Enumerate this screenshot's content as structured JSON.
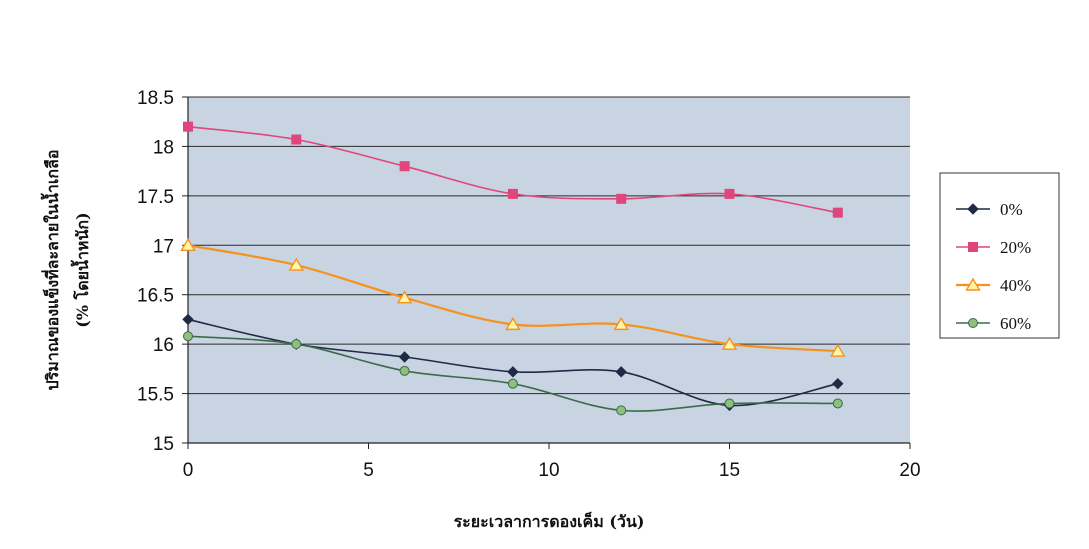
{
  "chart_data": {
    "type": "line",
    "xlabel": "ระยะเวลาการดองเค็ม (วัน)",
    "ylabel": [
      "ปริมาณของแข็งที่ละลายในน้ำเกลือ",
      "(% โดยน้ำหนัก)"
    ],
    "xlim": [
      0,
      20
    ],
    "ylim": [
      15,
      18.5
    ],
    "xticks": [
      "0",
      "5",
      "10",
      "15",
      "20"
    ],
    "yticks": [
      "15",
      "15.5",
      "16",
      "16.5",
      "17",
      "17.5",
      "18",
      "18.5"
    ],
    "grid": true,
    "legend_position": "right",
    "series": [
      {
        "name": "0%",
        "color": "#1f2a44",
        "marker": "diamond",
        "x": [
          0,
          3,
          6,
          9,
          12,
          15,
          18
        ],
        "y": [
          16.25,
          16.0,
          15.87,
          15.72,
          15.72,
          15.38,
          15.6
        ]
      },
      {
        "name": "20%",
        "color": "#e0457b",
        "marker": "square",
        "x": [
          0,
          3,
          6,
          9,
          12,
          15,
          18
        ],
        "y": [
          18.2,
          18.07,
          17.8,
          17.52,
          17.47,
          17.52,
          17.33
        ]
      },
      {
        "name": "40%",
        "color": "#f5921e",
        "marker": "triangle",
        "x": [
          0,
          3,
          6,
          9,
          12,
          15,
          18
        ],
        "y": [
          17.0,
          16.8,
          16.47,
          16.2,
          16.2,
          16.0,
          15.93
        ]
      },
      {
        "name": "60%",
        "color": "#3a6b4a",
        "marker": "circle",
        "x": [
          0,
          3,
          6,
          9,
          12,
          15,
          18
        ],
        "y": [
          16.08,
          16.0,
          15.73,
          15.6,
          15.33,
          15.4,
          15.4
        ]
      }
    ]
  }
}
